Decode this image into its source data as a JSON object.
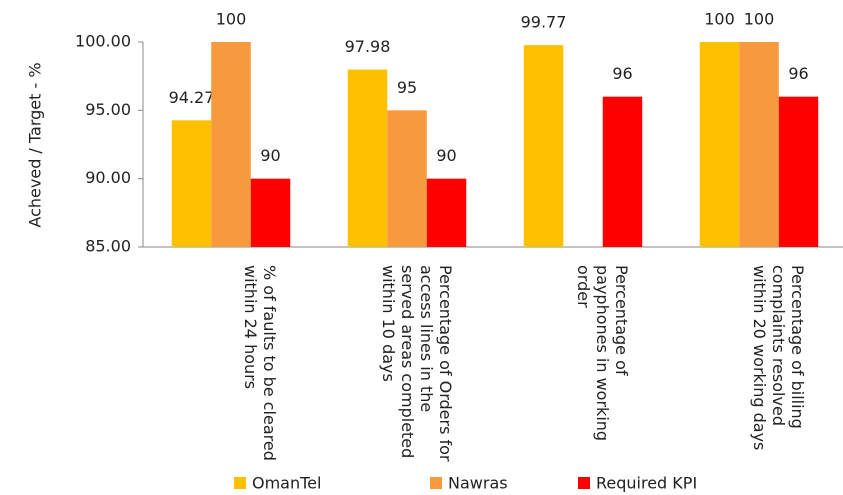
{
  "chart_data": {
    "type": "bar",
    "y_label": "Acheved / Target - %",
    "categories": [
      "% of faults to be cleared within 24 hours",
      "Percentage of Orders for access lines in the served areas  completed within 10 days",
      "Percentage of payphones in working order",
      "Percentage of billing complaints resolved within 20 working days"
    ],
    "series": [
      {
        "name": "OmanTel",
        "color": "#ffc000",
        "values": [
          94.27,
          97.98,
          99.77,
          100
        ]
      },
      {
        "name": "Nawras",
        "color": "#f79a3e",
        "values": [
          100,
          95,
          null,
          100
        ]
      },
      {
        "name": "Required KPI",
        "color": "#ff0000",
        "values": [
          90,
          90,
          96,
          96
        ]
      }
    ],
    "ylim": [
      85,
      100
    ],
    "yticks": [
      {
        "value": 85,
        "label": "85.00"
      },
      {
        "value": 90,
        "label": "90.00"
      },
      {
        "value": 95,
        "label": "95.00"
      },
      {
        "value": 100,
        "label": "100.00"
      }
    ],
    "grid": false,
    "legend": "bottom"
  }
}
